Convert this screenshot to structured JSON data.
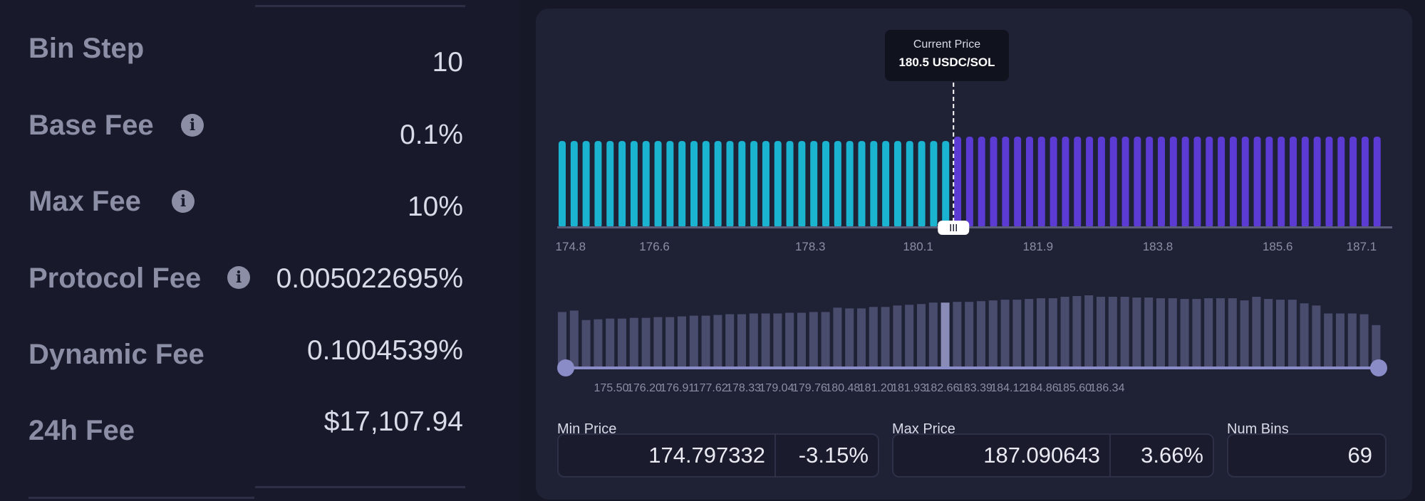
{
  "fees": [
    {
      "label": "Bin Step",
      "value": "10",
      "info": false
    },
    {
      "label": "Base Fee",
      "value": "0.1%",
      "info": true
    },
    {
      "label": "Max Fee",
      "value": "10%",
      "info": true
    },
    {
      "label": "Protocol Fee",
      "value": "0.005022695%",
      "info": true
    },
    {
      "label": "Dynamic Fee",
      "value": "0.1004539%",
      "info": false
    },
    {
      "label": "24h Fee",
      "value": "$17,107.94",
      "info": false
    }
  ],
  "tooltip": {
    "title": "Current Price",
    "value": "180.5 USDC/SOL"
  },
  "colors": {
    "below": "#1bb4d0",
    "above": "#5b3bd4",
    "range": "#4a4c6e",
    "range_active": "#8a8cb8",
    "slider": "#8a8cc8"
  },
  "chart_data": [
    {
      "type": "bar",
      "description_source": "liquidity bins",
      "bins": 69,
      "active_bin_index": 32,
      "tick_labels": [
        "174.8",
        "176.6",
        "178.3",
        "180.1",
        "181.9",
        "183.8",
        "185.6",
        "187.1"
      ],
      "tick_bins": [
        1,
        8,
        21,
        30,
        40,
        50,
        60,
        67
      ],
      "values": [
        1,
        1,
        1,
        1,
        1,
        1,
        1,
        1,
        1,
        1,
        1,
        1,
        1,
        1,
        1,
        1,
        1,
        1,
        1,
        1,
        1,
        1,
        1,
        1,
        1,
        1,
        1,
        1,
        1,
        1,
        1,
        1,
        1,
        1.05,
        1.05,
        1.05,
        1.05,
        1.05,
        1.05,
        1.05,
        1.05,
        1.05,
        1.05,
        1.05,
        1.05,
        1.05,
        1.05,
        1.05,
        1.05,
        1.05,
        1.05,
        1.05,
        1.05,
        1.05,
        1.05,
        1.05,
        1.05,
        1.05,
        1.05,
        1.05,
        1.05,
        1.05,
        1.05,
        1.05,
        1.05,
        1.05,
        1.05,
        1.05,
        1.05
      ]
    },
    {
      "type": "bar",
      "description_source": "price range histogram",
      "active_index": 32,
      "tick_labels": [
        "175.50",
        "176.20",
        "176.91",
        "177.62",
        "178.33",
        "179.04",
        "179.76",
        "180.48",
        "181.20",
        "181.93",
        "182.66",
        "183.39",
        "184.12",
        "184.86",
        "185.60",
        "186.34"
      ],
      "values": [
        77,
        79,
        66,
        67,
        68,
        68,
        69,
        69,
        70,
        70,
        71,
        72,
        72,
        73,
        74,
        74,
        75,
        75,
        75,
        76,
        76,
        77,
        77,
        83,
        82,
        82,
        84,
        84,
        86,
        87,
        88,
        90,
        90,
        91,
        91,
        92,
        93,
        94,
        94,
        95,
        96,
        96,
        98,
        99,
        100,
        98,
        98,
        98,
        97,
        97,
        96,
        96,
        95,
        95,
        96,
        96,
        96,
        93,
        98,
        95,
        94,
        94,
        89,
        86,
        75,
        75,
        75,
        74,
        59
      ]
    }
  ],
  "min_price": {
    "label": "Min Price",
    "value": "174.797332",
    "pct": "-3.15%"
  },
  "max_price": {
    "label": "Max Price",
    "value": "187.090643",
    "pct": "3.66%"
  },
  "num_bins": {
    "label": "Num Bins",
    "value": "69"
  }
}
